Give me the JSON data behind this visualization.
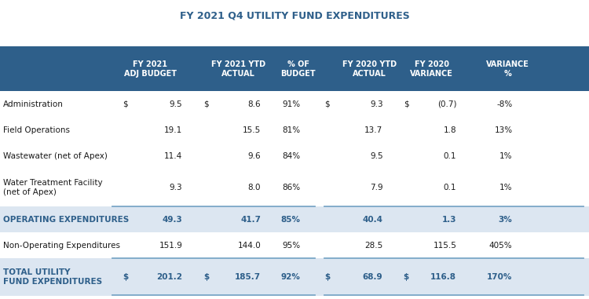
{
  "title": "FY 2021 Q4 UTILITY FUND EXPENDITURES",
  "header_bg": "#2e5f8a",
  "header_text_color": "#ffffff",
  "rows": [
    {
      "label": "Administration",
      "dollar1": "$",
      "col1": "9.5",
      "dollar2": "$",
      "col2": "8.6",
      "col3": "91%",
      "dollar3": "$",
      "col4": "9.3",
      "dollar4": "$",
      "col5": "(0.7)",
      "col6": "-8%",
      "bold": false,
      "shaded": false
    },
    {
      "label": "Field Operations",
      "dollar1": "",
      "col1": "19.1",
      "dollar2": "",
      "col2": "15.5",
      "col3": "81%",
      "dollar3": "",
      "col4": "13.7",
      "dollar4": "",
      "col5": "1.8",
      "col6": "13%",
      "bold": false,
      "shaded": false
    },
    {
      "label": "Wastewater (net of Apex)",
      "dollar1": "",
      "col1": "11.4",
      "dollar2": "",
      "col2": "9.6",
      "col3": "84%",
      "dollar3": "",
      "col4": "9.5",
      "dollar4": "",
      "col5": "0.1",
      "col6": "1%",
      "bold": false,
      "shaded": false
    },
    {
      "label": "Water Treatment Facility\n(net of Apex)",
      "dollar1": "",
      "col1": "9.3",
      "dollar2": "",
      "col2": "8.0",
      "col3": "86%",
      "dollar3": "",
      "col4": "7.9",
      "dollar4": "",
      "col5": "0.1",
      "col6": "1%",
      "bold": false,
      "shaded": false
    },
    {
      "label": "OPERATING EXPENDITURES",
      "dollar1": "",
      "col1": "49.3",
      "dollar2": "",
      "col2": "41.7",
      "col3": "85%",
      "dollar3": "",
      "col4": "40.4",
      "dollar4": "",
      "col5": "1.3",
      "col6": "3%",
      "bold": true,
      "shaded": true
    },
    {
      "label": "Non-Operating Expenditures",
      "dollar1": "",
      "col1": "151.9",
      "dollar2": "",
      "col2": "144.0",
      "col3": "95%",
      "dollar3": "",
      "col4": "28.5",
      "dollar4": "",
      "col5": "115.5",
      "col6": "405%",
      "bold": false,
      "shaded": false
    },
    {
      "label": "TOTAL UTILITY\nFUND EXPENDITURES",
      "dollar1": "$",
      "col1": "201.2",
      "dollar2": "$",
      "col2": "185.7",
      "col3": "92%",
      "dollar3": "$",
      "col4": "68.9",
      "dollar4": "$",
      "col5": "116.8",
      "col6": "170%",
      "bold": true,
      "shaded": true
    }
  ],
  "header_cols": [
    [
      0.255,
      "FY 2021\nADJ BUDGET"
    ],
    [
      0.405,
      "FY 2021 YTD\nACTUAL"
    ],
    [
      0.506,
      "% OF\nBUDGET"
    ],
    [
      0.627,
      "FY 2020 YTD\nACTUAL"
    ],
    [
      0.733,
      "FY 2020\nVARIANCE"
    ],
    [
      0.862,
      "VARIANCE\n%"
    ]
  ],
  "col_x": {
    "dollar1": 0.208,
    "col1": 0.31,
    "dollar2": 0.345,
    "col2": 0.443,
    "col3": 0.51,
    "dollar3": 0.551,
    "col4": 0.65,
    "dollar4": 0.685,
    "col5": 0.775,
    "col6": 0.87
  },
  "shaded_color": "#dce6f1",
  "bold_text_color": "#2e5f8a",
  "normal_text_color": "#1a1a1a",
  "title_color": "#2e5f8a",
  "divider_color": "#7ba7c7",
  "background_color": "#ffffff",
  "title_fontsize": 9.0,
  "header_fontsize": 7.0,
  "row_fontsize": 7.5
}
